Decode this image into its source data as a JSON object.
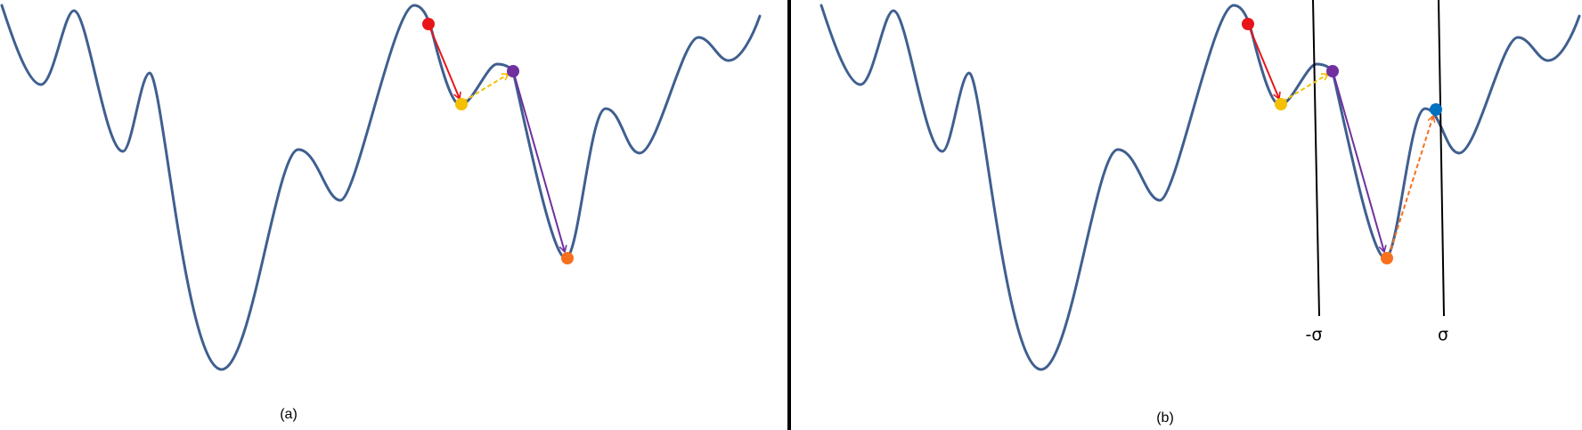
{
  "panels": [
    {
      "id": "a",
      "caption": "(a)",
      "points": [
        {
          "name": "red",
          "color": "#e8141a"
        },
        {
          "name": "yellow",
          "color": "#f5c000"
        },
        {
          "name": "purple",
          "color": "#7030a0"
        },
        {
          "name": "orange",
          "color": "#f7701e"
        }
      ],
      "arrows": [
        {
          "name": "red-arrow",
          "from": "red",
          "to": "yellow",
          "style": "solid",
          "color": "#e8141a"
        },
        {
          "name": "yellow-arrow",
          "from": "yellow",
          "to": "purple",
          "style": "dashed",
          "color": "#f5c000"
        },
        {
          "name": "purple-arrow",
          "from": "purple",
          "to": "orange",
          "style": "solid",
          "color": "#7030a0"
        }
      ]
    },
    {
      "id": "b",
      "caption": "(b)",
      "points": [
        {
          "name": "red",
          "color": "#e8141a"
        },
        {
          "name": "yellow",
          "color": "#f5c000"
        },
        {
          "name": "purple",
          "color": "#7030a0"
        },
        {
          "name": "orange",
          "color": "#f7701e"
        },
        {
          "name": "blue",
          "color": "#0070c0"
        }
      ],
      "arrows": [
        {
          "name": "red-arrow",
          "from": "red",
          "to": "yellow",
          "style": "solid",
          "color": "#e8141a"
        },
        {
          "name": "yellow-arrow",
          "from": "yellow",
          "to": "purple",
          "style": "dashed",
          "color": "#f5c000"
        },
        {
          "name": "purple-arrow",
          "from": "purple",
          "to": "orange",
          "style": "solid",
          "color": "#7030a0"
        },
        {
          "name": "orange-arrow",
          "from": "orange",
          "to": "blue",
          "style": "dashed",
          "color": "#f7701e"
        }
      ],
      "bounds": {
        "left_label": "-σ",
        "right_label": "σ"
      }
    }
  ],
  "curve_color": "#3f5f8f"
}
